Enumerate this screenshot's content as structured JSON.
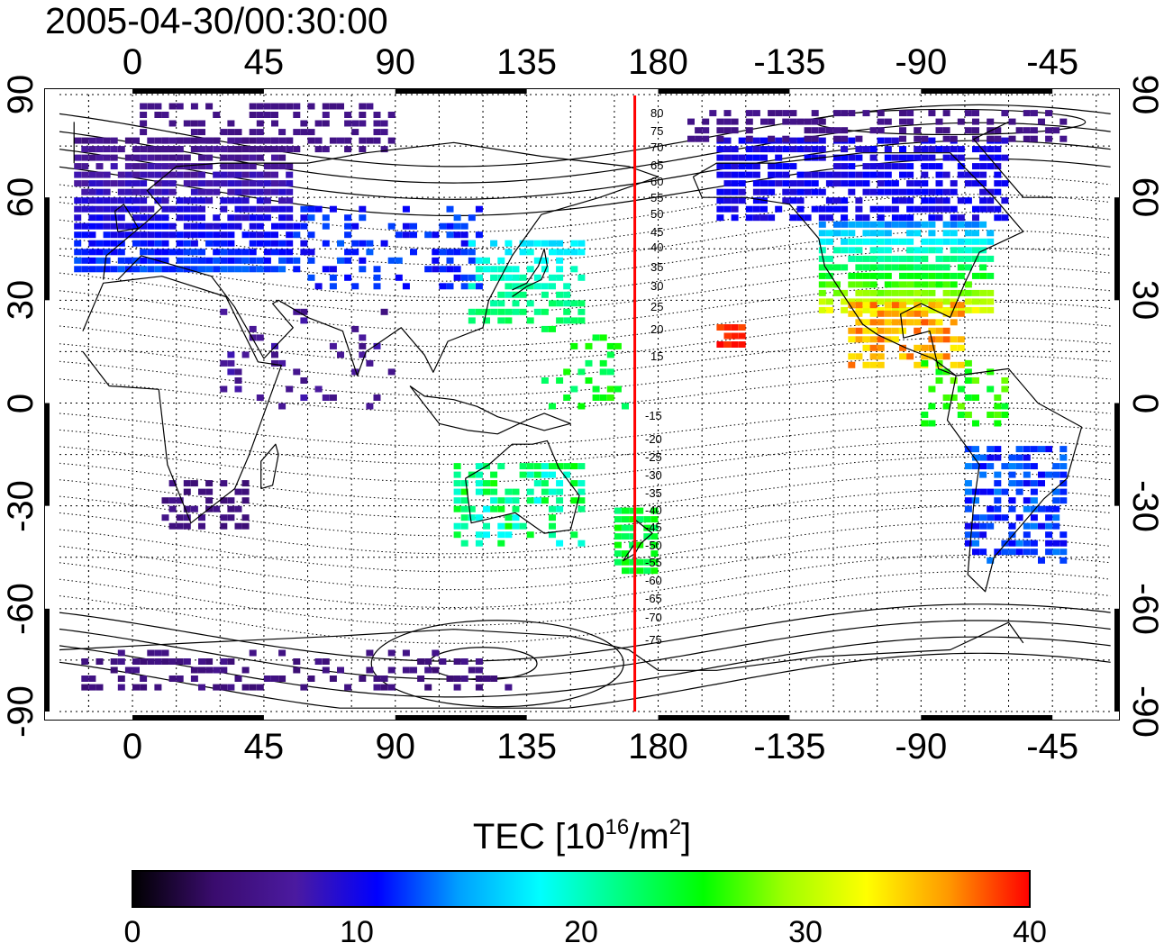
{
  "title": "2005-04-30/00:30:00",
  "lon_ticks_top": [
    "0",
    "45",
    "90",
    "135",
    "180",
    "-135",
    "-90",
    "-45"
  ],
  "lon_ticks_bottom": [
    "0",
    "45",
    "90",
    "135",
    "180",
    "-135",
    "-90",
    "-45"
  ],
  "lat_ticks_left": [
    "90",
    "60",
    "30",
    "0",
    "-30",
    "-60",
    "-90"
  ],
  "lat_ticks_right": [
    "90",
    "60",
    "30",
    "0",
    "-30",
    "-60",
    "-90"
  ],
  "mlat_labels": [
    "80",
    "75",
    "70",
    "65",
    "60",
    "55",
    "50",
    "45",
    "40",
    "35",
    "30",
    "25",
    "20",
    "15",
    "-15",
    "-20",
    "-25",
    "-30",
    "-35",
    "-40",
    "-45",
    "-50",
    "-55",
    "-60",
    "-65",
    "-70",
    "-75"
  ],
  "colorbar": {
    "title_prefix": "TEC  [10",
    "title_sup1": "16",
    "title_mid": "/m",
    "title_sup2": "2",
    "title_suffix": "]",
    "ticks": [
      "0",
      "10",
      "20",
      "30",
      "40"
    ],
    "range": [
      0,
      40
    ],
    "colors": [
      "#000000",
      "#3a0c6e",
      "#4b1aa0",
      "#0000ff",
      "#00a0ff",
      "#00ffff",
      "#00ff80",
      "#00ff00",
      "#a0ff00",
      "#ffff00",
      "#ff9900",
      "#ff0000"
    ]
  },
  "meridian_marker": {
    "longitude": 172,
    "color": "#ff0000"
  },
  "colors": {
    "background": "#ffffff",
    "coast": "#000000",
    "grid": "#000000"
  }
}
